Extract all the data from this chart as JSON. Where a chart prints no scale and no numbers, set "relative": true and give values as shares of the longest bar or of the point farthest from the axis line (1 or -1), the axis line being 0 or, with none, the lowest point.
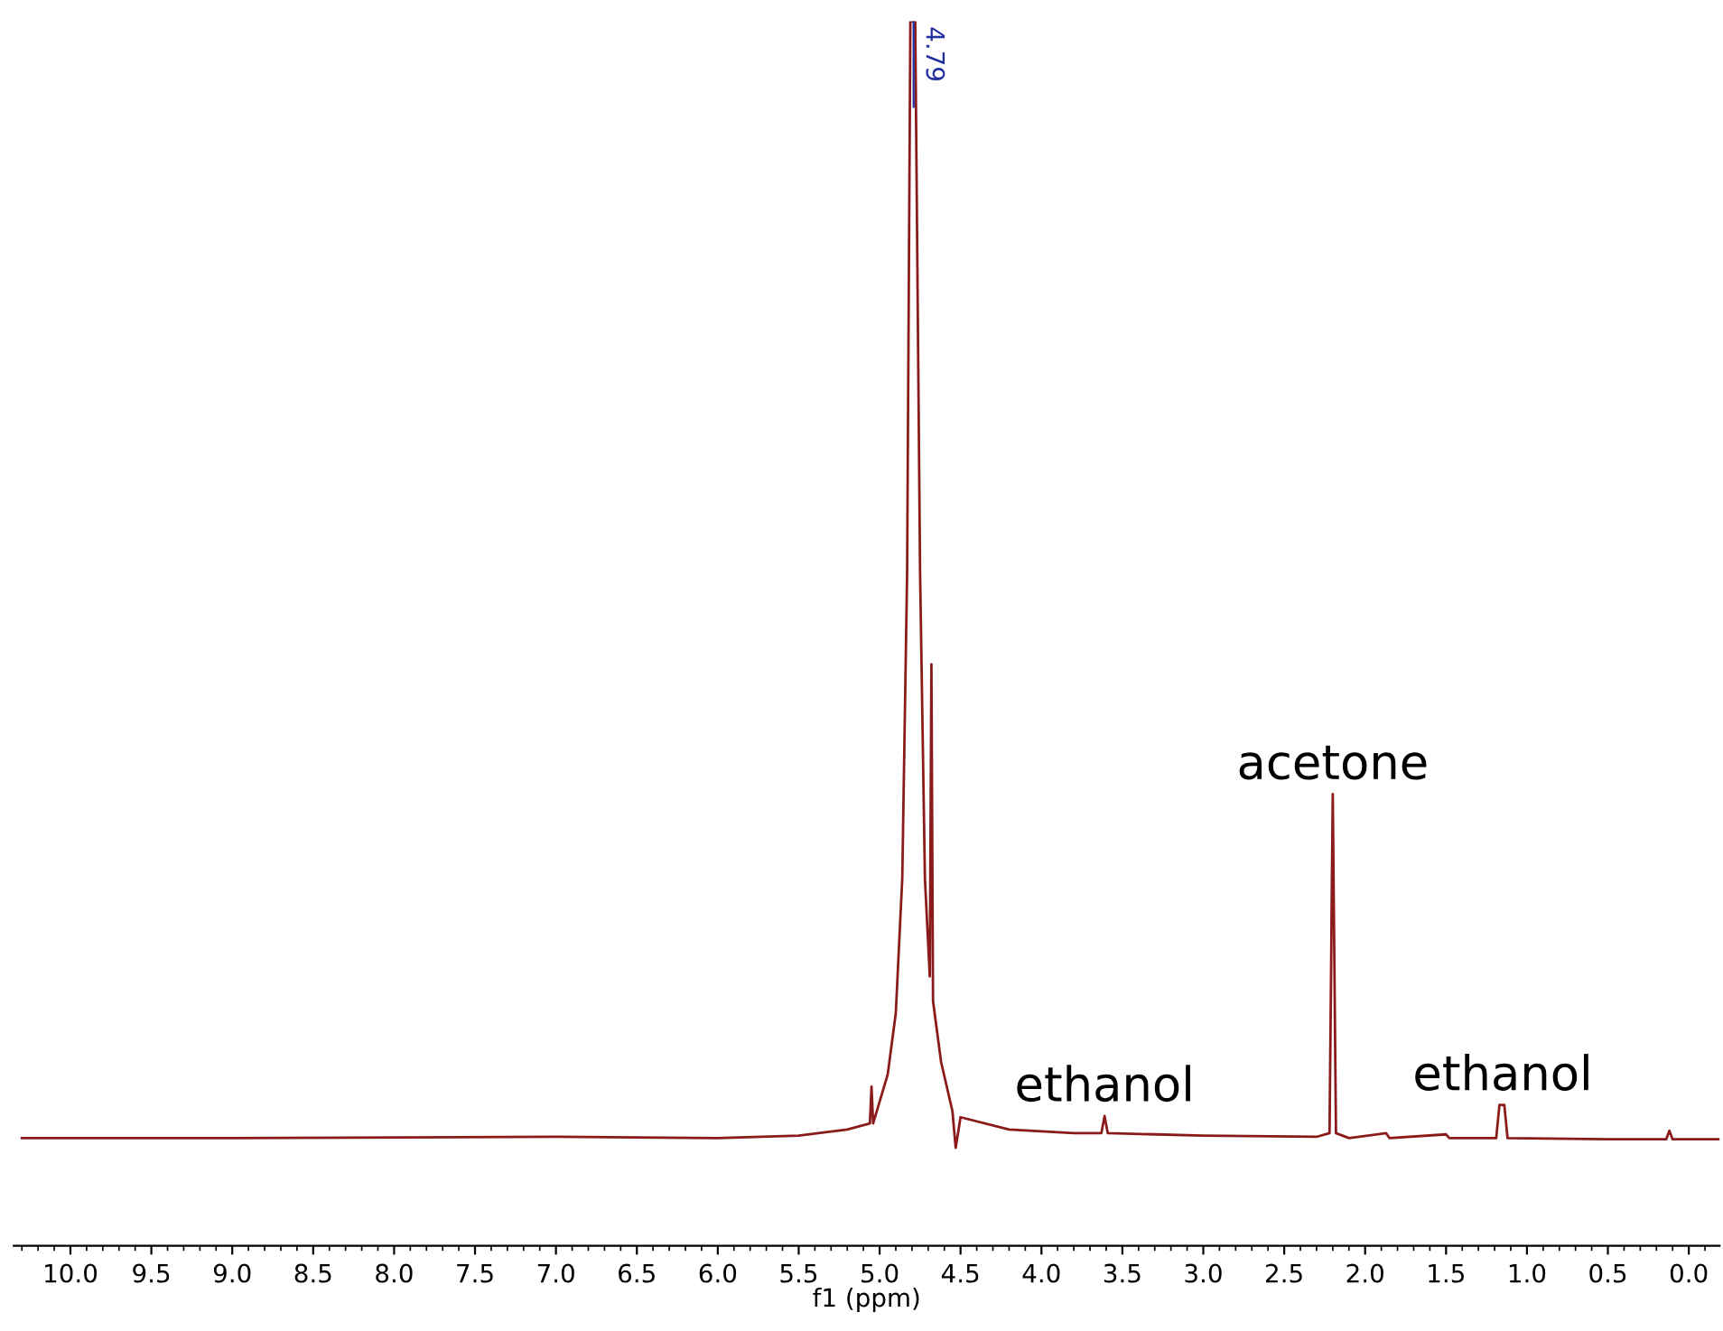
{
  "chart_data": {
    "type": "line",
    "relative": true,
    "xlabel": "f1 (ppm)",
    "xlim": [
      10.35,
      -0.19
    ],
    "xticks": [
      {
        "value": 10.0,
        "label": "10.0"
      },
      {
        "value": 9.5,
        "label": "9.5"
      },
      {
        "value": 9.0,
        "label": "9.0"
      },
      {
        "value": 8.5,
        "label": "8.5"
      },
      {
        "value": 8.0,
        "label": "8.0"
      },
      {
        "value": 7.5,
        "label": "7.5"
      },
      {
        "value": 7.0,
        "label": "7.0"
      },
      {
        "value": 6.5,
        "label": "6.5"
      },
      {
        "value": 6.0,
        "label": "6.0"
      },
      {
        "value": 5.5,
        "label": "5.5"
      },
      {
        "value": 5.0,
        "label": "5.0"
      },
      {
        "value": 4.5,
        "label": "4.5"
      },
      {
        "value": 4.0,
        "label": "4.0"
      },
      {
        "value": 3.5,
        "label": "3.5"
      },
      {
        "value": 3.0,
        "label": "3.0"
      },
      {
        "value": 2.5,
        "label": "2.5"
      },
      {
        "value": 2.0,
        "label": "2.0"
      },
      {
        "value": 1.5,
        "label": "1.5"
      },
      {
        "value": 1.0,
        "label": "1.0"
      },
      {
        "value": 0.5,
        "label": "0.5"
      },
      {
        "value": 0.0,
        "label": "0.0"
      }
    ],
    "tick_labels": "x",
    "grid": false,
    "legend": false,
    "marker": "none",
    "line_style": "solid",
    "series": [
      {
        "color": "#8b1a1a",
        "x": [
          10.3,
          9.0,
          7.0,
          6.0,
          5.5,
          5.2,
          5.06,
          5.05,
          5.04,
          4.95,
          4.9,
          4.86,
          4.83,
          4.81,
          4.78,
          4.75,
          4.72,
          4.69,
          4.68,
          4.67,
          4.62,
          4.55,
          4.53,
          4.5,
          4.2,
          3.8,
          3.63,
          3.61,
          3.59,
          3.0,
          2.3,
          2.22,
          2.2,
          2.18,
          2.1,
          1.87,
          1.85,
          1.5,
          1.48,
          1.19,
          1.17,
          1.14,
          1.12,
          0.5,
          0.14,
          0.12,
          0.1,
          -0.19
        ],
        "values": [
          0.088,
          0.088,
          0.089,
          0.088,
          0.09,
          0.095,
          0.1,
          0.13,
          0.1,
          0.14,
          0.19,
          0.3,
          0.55,
          1.0,
          1.0,
          0.55,
          0.3,
          0.22,
          0.475,
          0.2,
          0.15,
          0.11,
          0.08,
          0.105,
          0.095,
          0.092,
          0.092,
          0.106,
          0.092,
          0.09,
          0.089,
          0.092,
          0.369,
          0.092,
          0.088,
          0.092,
          0.088,
          0.091,
          0.088,
          0.088,
          0.115,
          0.115,
          0.088,
          0.087,
          0.087,
          0.094,
          0.087,
          0.087
        ]
      }
    ],
    "annotations": [
      {
        "text": "4.79",
        "x": 4.79,
        "y": 1.0
      },
      {
        "text": "ethanol",
        "x": 3.61,
        "y": 0.106
      },
      {
        "text": "acetone",
        "x": 2.2,
        "y": 0.369
      },
      {
        "text": "ethanol",
        "x": 1.15,
        "y": 0.115
      }
    ]
  }
}
